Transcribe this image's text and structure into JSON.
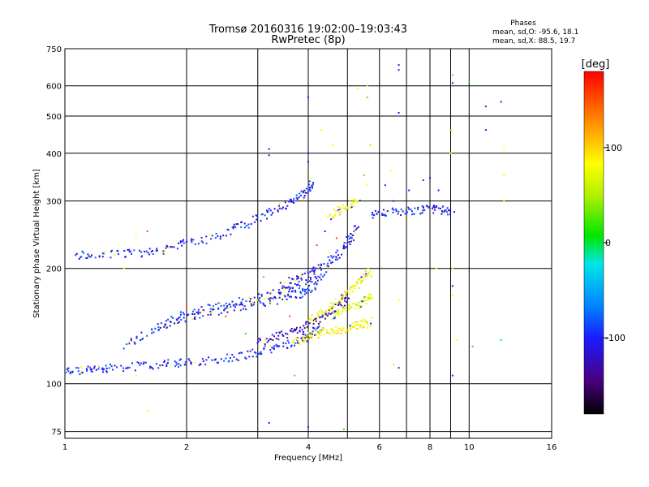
{
  "chart_data": {
    "type": "scatter",
    "title": "Tromsø 20160316 19:02:00–19:03:43",
    "subtitle": "RwPretec (8p)",
    "xlabel": "Frequency [MHz]",
    "ylabel": "Stationary phase Virtual Height [km]",
    "x_scale": "log",
    "y_scale": "log",
    "xlim": [
      1,
      16
    ],
    "ylim": [
      72,
      750
    ],
    "x_ticks": [
      1,
      2,
      4,
      6,
      8,
      10,
      16
    ],
    "x_tick_labels": [
      "1",
      "2",
      "4",
      "6",
      "8",
      "10",
      "16"
    ],
    "x_minor_grid": [
      3,
      5,
      7,
      9
    ],
    "y_ticks": [
      75,
      100,
      200,
      300,
      400,
      500,
      600,
      750
    ],
    "y_tick_labels": [
      "75",
      "100",
      "200",
      "300",
      "400",
      "500",
      "600",
      "750"
    ],
    "grid": true,
    "phase_info": {
      "title": "Phases",
      "line_o": "mean, sd,O: -95.6, 18.1",
      "line_x": "mean, sd,X:  88.5, 19.7"
    },
    "colorbar": {
      "label": "[deg]",
      "range": [
        -180,
        180
      ],
      "ticks": [
        100,
        0,
        -100
      ],
      "tick_labels": [
        "100",
        "0",
        "-100"
      ],
      "colormap": "rainbow (black-purple-blue-cyan-green-yellow-red)"
    },
    "traces": [
      {
        "phase": -100,
        "points": [
          [
            1.0,
            108
          ],
          [
            1.1,
            108
          ],
          [
            1.2,
            109
          ],
          [
            1.3,
            110
          ],
          [
            1.5,
            111
          ],
          [
            1.7,
            112
          ],
          [
            1.9,
            113
          ],
          [
            2.1,
            114
          ],
          [
            2.4,
            116
          ],
          [
            2.7,
            118
          ],
          [
            3.0,
            121
          ],
          [
            3.3,
            124
          ],
          [
            3.6,
            127
          ],
          [
            3.9,
            131
          ],
          [
            4.1,
            135
          ],
          [
            4.3,
            140
          ]
        ]
      },
      {
        "phase": -100,
        "points": [
          [
            1.4,
            125
          ],
          [
            1.6,
            135
          ],
          [
            1.8,
            145
          ],
          [
            2.0,
            152
          ],
          [
            2.3,
            158
          ],
          [
            2.6,
            162
          ],
          [
            2.9,
            166
          ],
          [
            3.2,
            170
          ],
          [
            3.5,
            174
          ],
          [
            3.8,
            178
          ],
          [
            4.1,
            184
          ],
          [
            4.4,
            194
          ]
        ]
      },
      {
        "phase": -100,
        "points": [
          [
            1.7,
            140
          ],
          [
            2.0,
            148
          ],
          [
            2.3,
            154
          ],
          [
            2.6,
            158
          ],
          [
            3.0,
            162
          ],
          [
            3.4,
            166
          ],
          [
            3.8,
            170
          ],
          [
            4.2,
            176
          ]
        ]
      },
      {
        "phase": -120,
        "points": [
          [
            3.0,
            128
          ],
          [
            3.3,
            132
          ],
          [
            3.6,
            136
          ],
          [
            3.9,
            140
          ],
          [
            4.2,
            146
          ],
          [
            4.5,
            152
          ],
          [
            4.8,
            160
          ],
          [
            5.0,
            170
          ]
        ]
      },
      {
        "phase": -110,
        "points": [
          [
            3.4,
            180
          ],
          [
            3.7,
            186
          ],
          [
            4.0,
            192
          ],
          [
            4.3,
            200
          ],
          [
            4.6,
            212
          ],
          [
            4.9,
            226
          ],
          [
            5.1,
            240
          ],
          [
            5.3,
            256
          ]
        ]
      },
      {
        "phase": -100,
        "points": [
          [
            1.05,
            216
          ],
          [
            1.2,
            217
          ],
          [
            1.4,
            218
          ],
          [
            1.6,
            220
          ],
          [
            1.8,
            226
          ],
          [
            2.0,
            232
          ],
          [
            2.3,
            240
          ],
          [
            2.6,
            252
          ],
          [
            2.9,
            265
          ],
          [
            3.2,
            278
          ],
          [
            3.5,
            292
          ],
          [
            3.8,
            305
          ],
          [
            4.0,
            318
          ],
          [
            4.1,
            340
          ]
        ]
      },
      {
        "phase": 100,
        "points": [
          [
            3.7,
            128
          ],
          [
            4.0,
            133
          ],
          [
            4.3,
            136
          ],
          [
            4.6,
            138
          ],
          [
            4.9,
            139
          ],
          [
            5.2,
            141
          ],
          [
            5.5,
            143
          ],
          [
            5.7,
            146
          ]
        ]
      },
      {
        "phase": 100,
        "points": [
          [
            4.0,
            145
          ],
          [
            4.3,
            152
          ],
          [
            4.6,
            160
          ],
          [
            4.9,
            170
          ],
          [
            5.2,
            180
          ],
          [
            5.5,
            188
          ],
          [
            5.7,
            196
          ]
        ]
      },
      {
        "phase": 80,
        "points": [
          [
            4.6,
            150
          ],
          [
            4.9,
            156
          ],
          [
            5.2,
            160
          ],
          [
            5.5,
            165
          ],
          [
            5.8,
            172
          ]
        ]
      },
      {
        "phase": 100,
        "points": [
          [
            4.5,
            270
          ],
          [
            4.8,
            285
          ],
          [
            5.1,
            293
          ],
          [
            5.3,
            300
          ]
        ]
      },
      {
        "phase": -100,
        "points": [
          [
            5.7,
            275
          ],
          [
            6.2,
            280
          ],
          [
            6.8,
            282
          ],
          [
            7.4,
            284
          ],
          [
            8.0,
            286
          ],
          [
            8.6,
            284
          ],
          [
            9.1,
            283
          ]
        ]
      }
    ],
    "scatter_points": [
      {
        "x": 6.7,
        "y": 680,
        "phase": -100
      },
      {
        "x": 6.7,
        "y": 660,
        "phase": -100
      },
      {
        "x": 6.7,
        "y": 510,
        "phase": -100
      },
      {
        "x": 9.1,
        "y": 610,
        "phase": -100
      },
      {
        "x": 11.0,
        "y": 530,
        "phase": -100
      },
      {
        "x": 12.0,
        "y": 545,
        "phase": -100
      },
      {
        "x": 11.0,
        "y": 460,
        "phase": -100
      },
      {
        "x": 9.1,
        "y": 640,
        "phase": 30
      },
      {
        "x": 10.0,
        "y": 615,
        "phase": 0
      },
      {
        "x": 5.6,
        "y": 600,
        "phase": 110
      },
      {
        "x": 5.6,
        "y": 560,
        "phase": 140
      },
      {
        "x": 5.3,
        "y": 590,
        "phase": 100
      },
      {
        "x": 12.2,
        "y": 410,
        "phase": 100
      },
      {
        "x": 12.2,
        "y": 350,
        "phase": 100
      },
      {
        "x": 12.2,
        "y": 300,
        "phase": 120
      },
      {
        "x": 9.0,
        "y": 460,
        "phase": 140
      },
      {
        "x": 9.0,
        "y": 400,
        "phase": 100
      },
      {
        "x": 4.0,
        "y": 560,
        "phase": -100
      },
      {
        "x": 3.2,
        "y": 410,
        "phase": -110
      },
      {
        "x": 3.2,
        "y": 395,
        "phase": -110
      },
      {
        "x": 4.0,
        "y": 400,
        "phase": -100
      },
      {
        "x": 4.0,
        "y": 380,
        "phase": -110
      },
      {
        "x": 8.0,
        "y": 345,
        "phase": -100
      },
      {
        "x": 8.4,
        "y": 320,
        "phase": -100
      },
      {
        "x": 9.1,
        "y": 200,
        "phase": 110
      },
      {
        "x": 9.1,
        "y": 180,
        "phase": -100
      },
      {
        "x": 9.1,
        "y": 170,
        "phase": 90
      },
      {
        "x": 9.3,
        "y": 130,
        "phase": 100
      },
      {
        "x": 9.1,
        "y": 105,
        "phase": -100
      },
      {
        "x": 6.7,
        "y": 110,
        "phase": -100
      },
      {
        "x": 6.5,
        "y": 112,
        "phase": 110
      },
      {
        "x": 6.7,
        "y": 165,
        "phase": 100
      },
      {
        "x": 12.0,
        "y": 130,
        "phase": -20
      },
      {
        "x": 10.2,
        "y": 125,
        "phase": 10
      },
      {
        "x": 3.2,
        "y": 79,
        "phase": -100
      },
      {
        "x": 4.0,
        "y": 77,
        "phase": -100
      },
      {
        "x": 4.9,
        "y": 76,
        "phase": 10
      },
      {
        "x": 1.6,
        "y": 85,
        "phase": 100
      },
      {
        "x": 1.6,
        "y": 250,
        "phase": 160
      },
      {
        "x": 1.5,
        "y": 245,
        "phase": 100
      },
      {
        "x": 1.4,
        "y": 200,
        "phase": 100
      },
      {
        "x": 1.5,
        "y": 105,
        "phase": 100
      },
      {
        "x": 3.7,
        "y": 105,
        "phase": 20
      },
      {
        "x": 4.5,
        "y": 220,
        "phase": 100
      },
      {
        "x": 5.6,
        "y": 330,
        "phase": 100
      },
      {
        "x": 5.5,
        "y": 350,
        "phase": 140
      },
      {
        "x": 6.2,
        "y": 330,
        "phase": -100
      },
      {
        "x": 6.5,
        "y": 300,
        "phase": -100
      },
      {
        "x": 6.4,
        "y": 360,
        "phase": 100
      },
      {
        "x": 7.1,
        "y": 320,
        "phase": -100
      },
      {
        "x": 7.7,
        "y": 340,
        "phase": -100
      },
      {
        "x": 7.0,
        "y": 270,
        "phase": 160
      },
      {
        "x": 4.3,
        "y": 460,
        "phase": 100
      },
      {
        "x": 4.6,
        "y": 420,
        "phase": 100
      },
      {
        "x": 5.7,
        "y": 420,
        "phase": 120
      },
      {
        "x": 4.2,
        "y": 230,
        "phase": 160
      },
      {
        "x": 4.4,
        "y": 250,
        "phase": -100
      },
      {
        "x": 4.7,
        "y": 240,
        "phase": 160
      },
      {
        "x": 2.0,
        "y": 160,
        "phase": 160
      },
      {
        "x": 2.5,
        "y": 150,
        "phase": 160
      },
      {
        "x": 3.1,
        "y": 190,
        "phase": 20
      },
      {
        "x": 2.8,
        "y": 135,
        "phase": 10
      },
      {
        "x": 3.6,
        "y": 150,
        "phase": 160
      },
      {
        "x": 8.3,
        "y": 200,
        "phase": 100
      }
    ]
  }
}
